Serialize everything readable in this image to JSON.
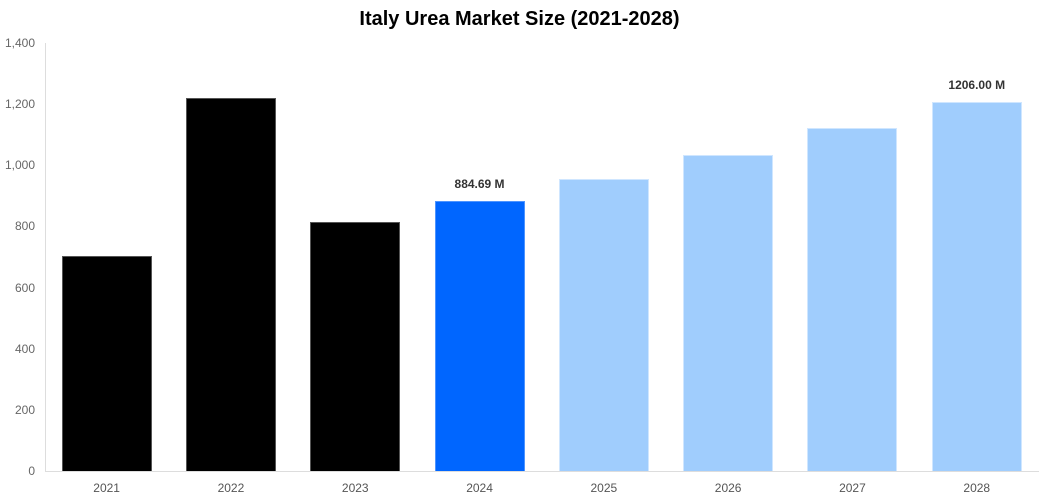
{
  "chart_data": {
    "type": "bar",
    "title": "Italy Urea Market Size (2021-2028)",
    "xlabel": "",
    "ylabel": "",
    "ylim": [
      0,
      1400
    ],
    "yticks": [
      "0",
      "200",
      "400",
      "600",
      "800",
      "1,000",
      "1,200",
      "1,400"
    ],
    "grid": false,
    "legend": null,
    "categories": [
      "2021",
      "2022",
      "2023",
      "2024",
      "2025",
      "2026",
      "2027",
      "2028"
    ],
    "values": [
      703,
      1220,
      815,
      884.69,
      955,
      1034,
      1122,
      1206
    ],
    "bar_kinds": [
      "historical",
      "historical",
      "historical",
      "current",
      "forecast",
      "forecast",
      "forecast",
      "forecast"
    ],
    "data_labels": [
      {
        "category": "2024",
        "text": "884.69 M"
      },
      {
        "category": "2028",
        "text": "1206.00 M"
      }
    ],
    "colors": {
      "historical": "#000000",
      "current": "#0066ff",
      "forecast": "#a0cdfd"
    }
  }
}
